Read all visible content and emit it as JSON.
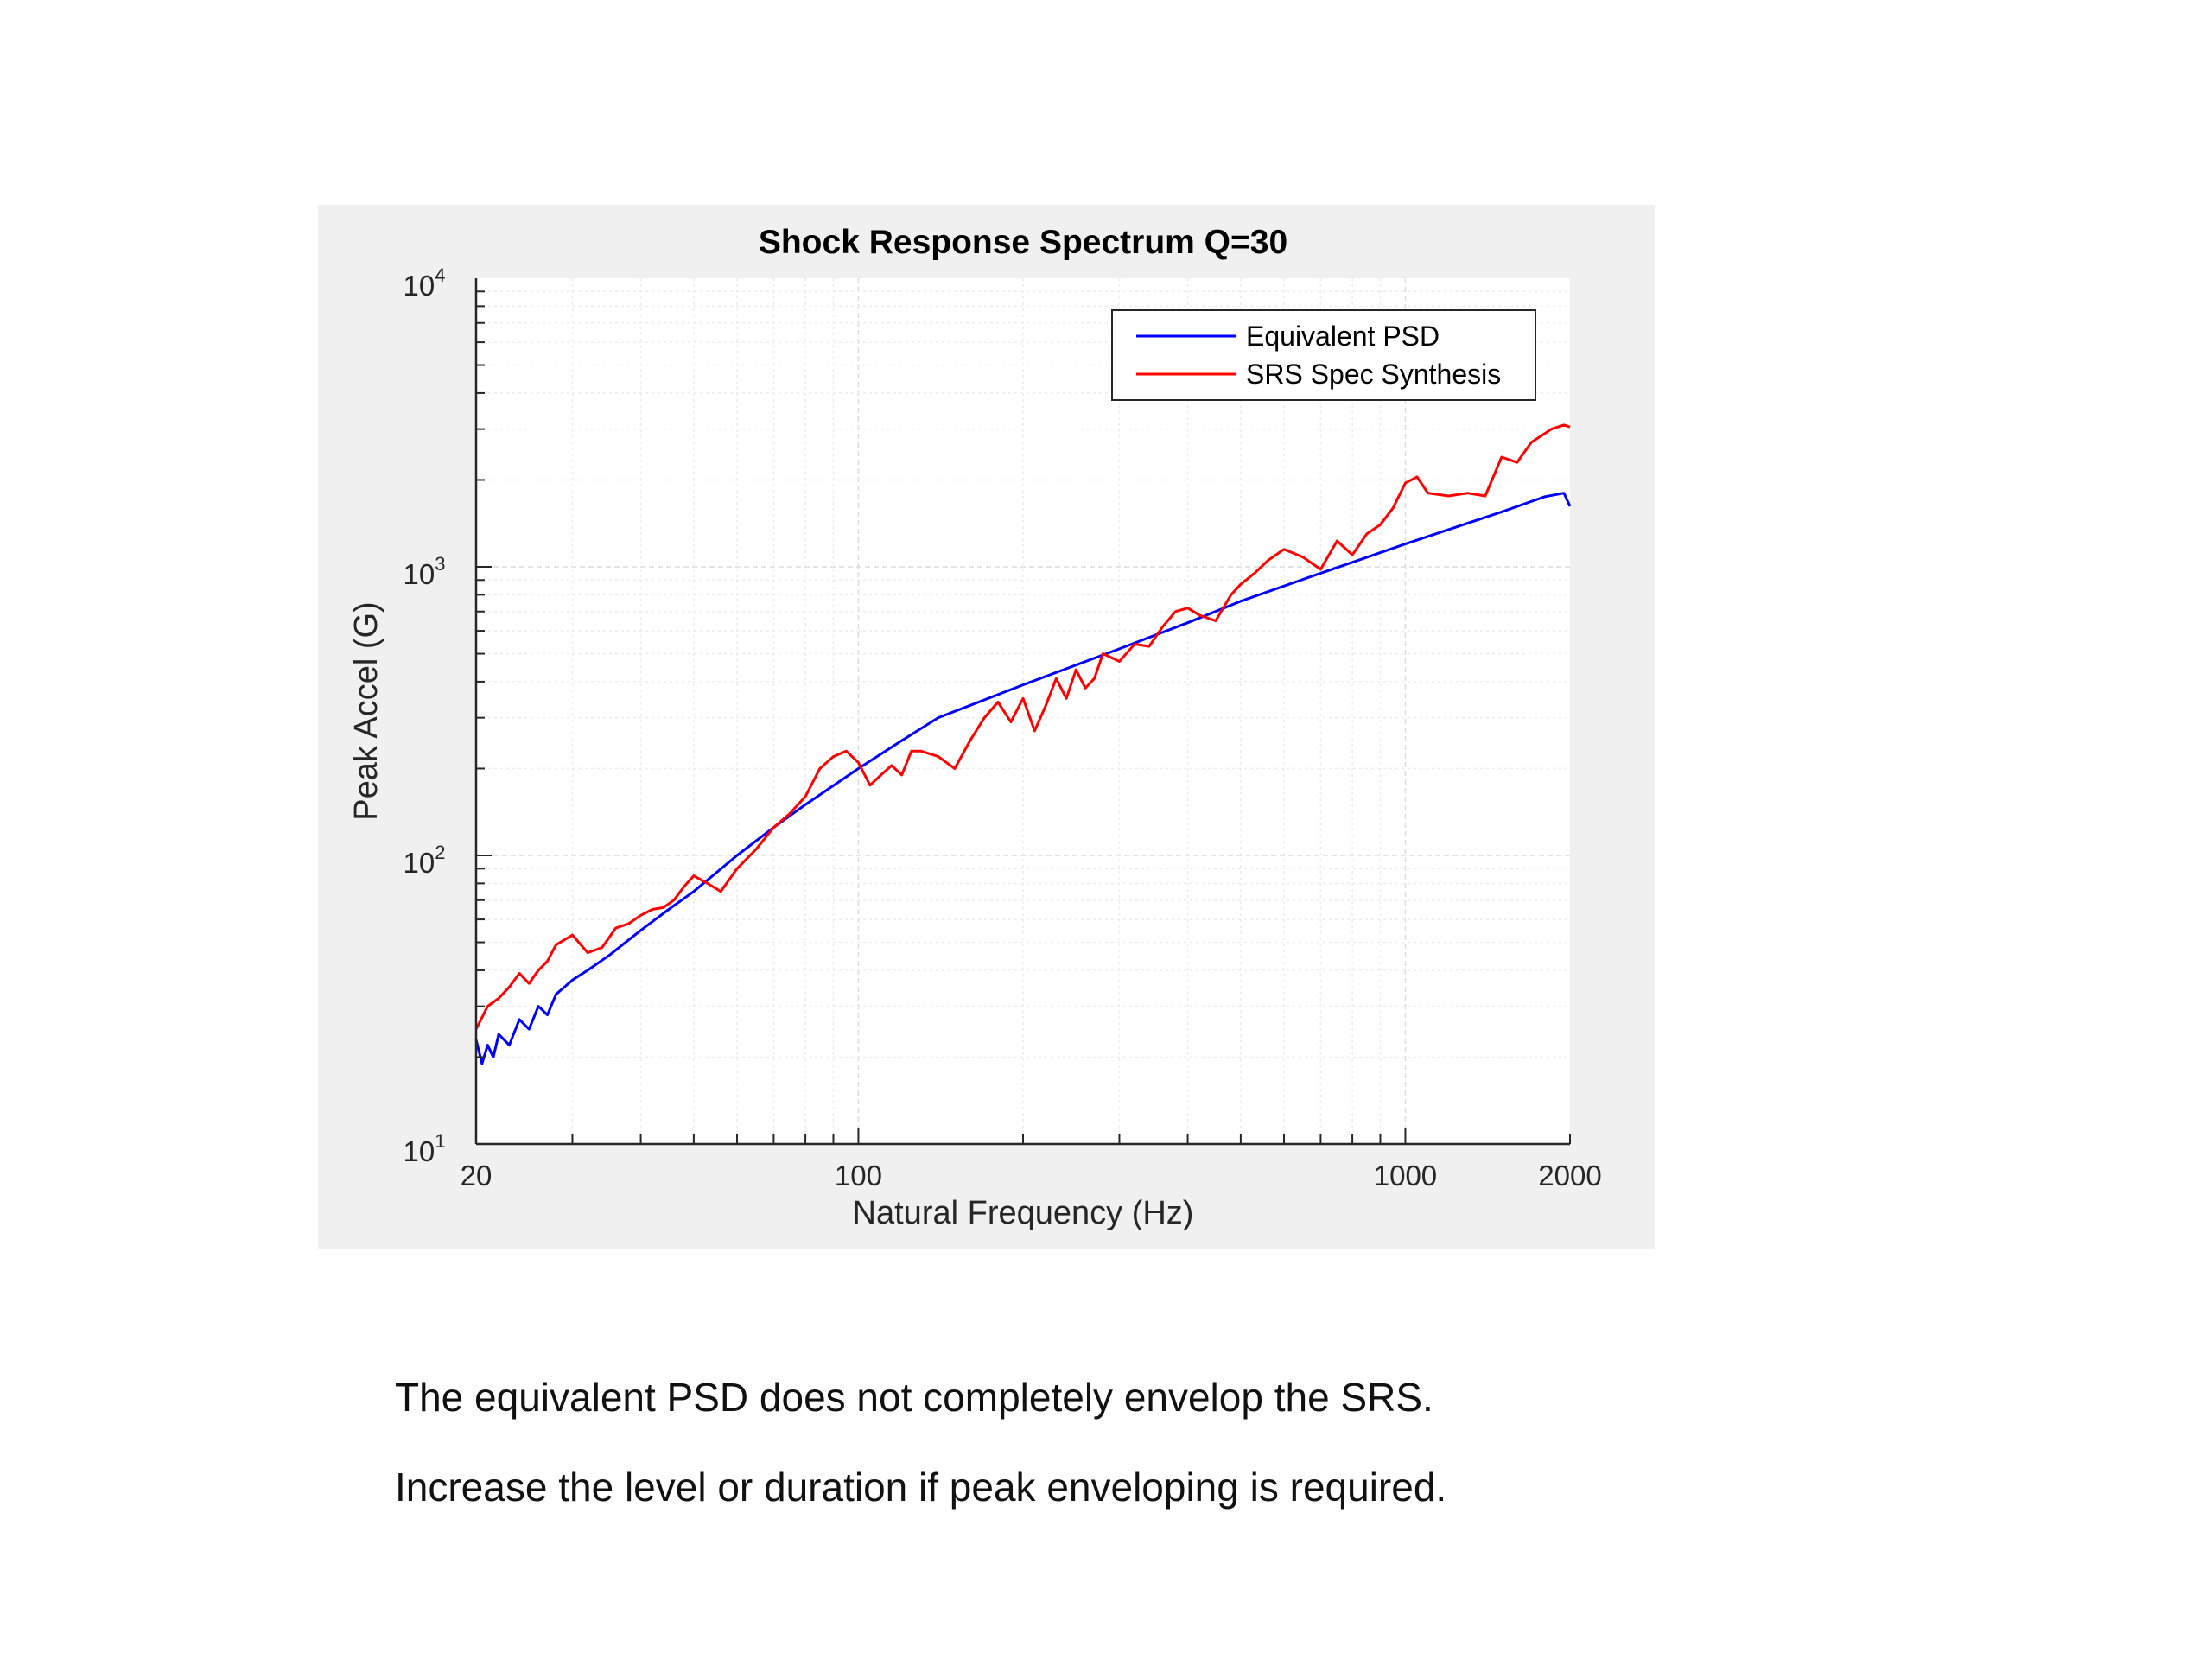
{
  "chart_data": {
    "type": "line",
    "title": "Shock Response Spectrum Q=30",
    "xlabel": "Natural Frequency (Hz)",
    "ylabel": "Peak Accel (G)",
    "x_scale": "log",
    "y_scale": "log",
    "xlim": [
      20,
      2000
    ],
    "ylim": [
      10,
      10000
    ],
    "x_ticks": [
      {
        "value": 20,
        "label": "20"
      },
      {
        "value": 100,
        "label": "100"
      },
      {
        "value": 1000,
        "label": "1000"
      },
      {
        "value": 2000,
        "label": "2000"
      }
    ],
    "y_ticks": [
      {
        "value": 10,
        "base": "10",
        "exp": "1"
      },
      {
        "value": 100,
        "base": "10",
        "exp": "2"
      },
      {
        "value": 1000,
        "base": "10",
        "exp": "3"
      },
      {
        "value": 10000,
        "base": "10",
        "exp": "4"
      }
    ],
    "grid": true,
    "legend_position": "top-right",
    "series": [
      {
        "name": "Equivalent PSD",
        "color": "#0000ff",
        "x": [
          20,
          20.5,
          21,
          21.5,
          22,
          23,
          24,
          25,
          26,
          27,
          28,
          30,
          32,
          35,
          40,
          45,
          50,
          60,
          70,
          80,
          100,
          120,
          140,
          200,
          300,
          400,
          500,
          700,
          1000,
          1500,
          1800,
          1950,
          2000
        ],
        "y": [
          23,
          19,
          22,
          20,
          24,
          22,
          27,
          25,
          30,
          28,
          33,
          37,
          40,
          45,
          55,
          65,
          75,
          100,
          125,
          150,
          200,
          250,
          300,
          390,
          520,
          640,
          760,
          950,
          1200,
          1550,
          1750,
          1800,
          1620
        ]
      },
      {
        "name": "SRS Spec Synthesis",
        "color": "#ff0000",
        "x": [
          20,
          21,
          22,
          23,
          24,
          25,
          26,
          27,
          28,
          30,
          32,
          34,
          36,
          38,
          40,
          42,
          44,
          46,
          48,
          50,
          53,
          56,
          60,
          65,
          70,
          75,
          80,
          85,
          90,
          95,
          100,
          105,
          110,
          115,
          120,
          125,
          130,
          140,
          150,
          160,
          170,
          180,
          190,
          200,
          210,
          220,
          230,
          240,
          250,
          260,
          270,
          280,
          300,
          320,
          340,
          360,
          380,
          400,
          420,
          450,
          480,
          500,
          530,
          560,
          600,
          650,
          700,
          750,
          800,
          850,
          900,
          950,
          1000,
          1050,
          1100,
          1200,
          1300,
          1400,
          1500,
          1600,
          1700,
          1800,
          1850,
          1900,
          1950,
          2000
        ],
        "y": [
          25,
          30,
          32,
          35,
          39,
          36,
          40,
          43,
          49,
          53,
          46,
          48,
          56,
          58,
          62,
          65,
          66,
          70,
          78,
          85,
          80,
          75,
          90,
          105,
          125,
          140,
          160,
          200,
          220,
          230,
          210,
          175,
          190,
          205,
          190,
          230,
          230,
          220,
          200,
          250,
          300,
          340,
          290,
          350,
          270,
          330,
          410,
          350,
          440,
          380,
          410,
          500,
          470,
          540,
          530,
          620,
          700,
          720,
          680,
          650,
          800,
          870,
          950,
          1050,
          1150,
          1080,
          980,
          1230,
          1100,
          1300,
          1400,
          1600,
          1950,
          2050,
          1800,
          1760,
          1800,
          1760,
          2400,
          2300,
          2700,
          2900,
          3000,
          3050,
          3100,
          3050
        ]
      }
    ]
  },
  "captions": {
    "line1": "The equivalent PSD does not completely envelop the SRS.",
    "line2": "Increase the level or duration if peak enveloping is required."
  }
}
